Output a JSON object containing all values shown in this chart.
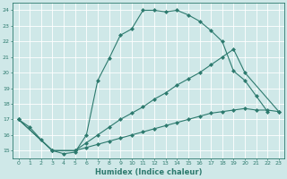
{
  "xlabel": "Humidex (Indice chaleur)",
  "bg_color": "#cfe8e8",
  "grid_color": "#ffffff",
  "line_color": "#2d7a6e",
  "xlim": [
    -0.5,
    23.5
  ],
  "ylim": [
    14.5,
    24.5
  ],
  "line1_x": [
    0,
    1,
    2,
    3,
    4,
    5,
    6,
    7,
    8,
    9,
    10,
    11,
    12,
    13,
    14,
    15,
    16,
    17,
    18,
    19,
    20,
    21,
    22
  ],
  "line1_y": [
    17.0,
    16.5,
    15.7,
    15.0,
    14.8,
    14.9,
    16.0,
    19.5,
    20.9,
    22.4,
    22.8,
    24.0,
    24.0,
    23.9,
    24.0,
    23.7,
    23.3,
    22.7,
    22.0,
    20.1,
    19.5,
    18.5,
    17.5
  ],
  "line2_x": [
    0,
    3,
    5,
    6,
    7,
    8,
    9,
    10,
    11,
    12,
    13,
    14,
    15,
    16,
    17,
    18,
    19,
    20,
    23
  ],
  "line2_y": [
    17.0,
    15.0,
    15.0,
    15.5,
    16.0,
    16.5,
    17.0,
    17.4,
    17.8,
    18.3,
    18.7,
    19.2,
    19.6,
    20.0,
    20.5,
    21.0,
    21.5,
    20.0,
    17.5
  ],
  "line3_x": [
    0,
    3,
    5,
    6,
    7,
    8,
    9,
    10,
    11,
    12,
    13,
    14,
    15,
    16,
    17,
    18,
    19,
    20,
    21,
    22,
    23
  ],
  "line3_y": [
    17.0,
    15.0,
    15.0,
    15.2,
    15.4,
    15.6,
    15.8,
    16.0,
    16.2,
    16.4,
    16.6,
    16.8,
    17.0,
    17.2,
    17.4,
    17.5,
    17.6,
    17.7,
    17.6,
    17.6,
    17.5
  ]
}
